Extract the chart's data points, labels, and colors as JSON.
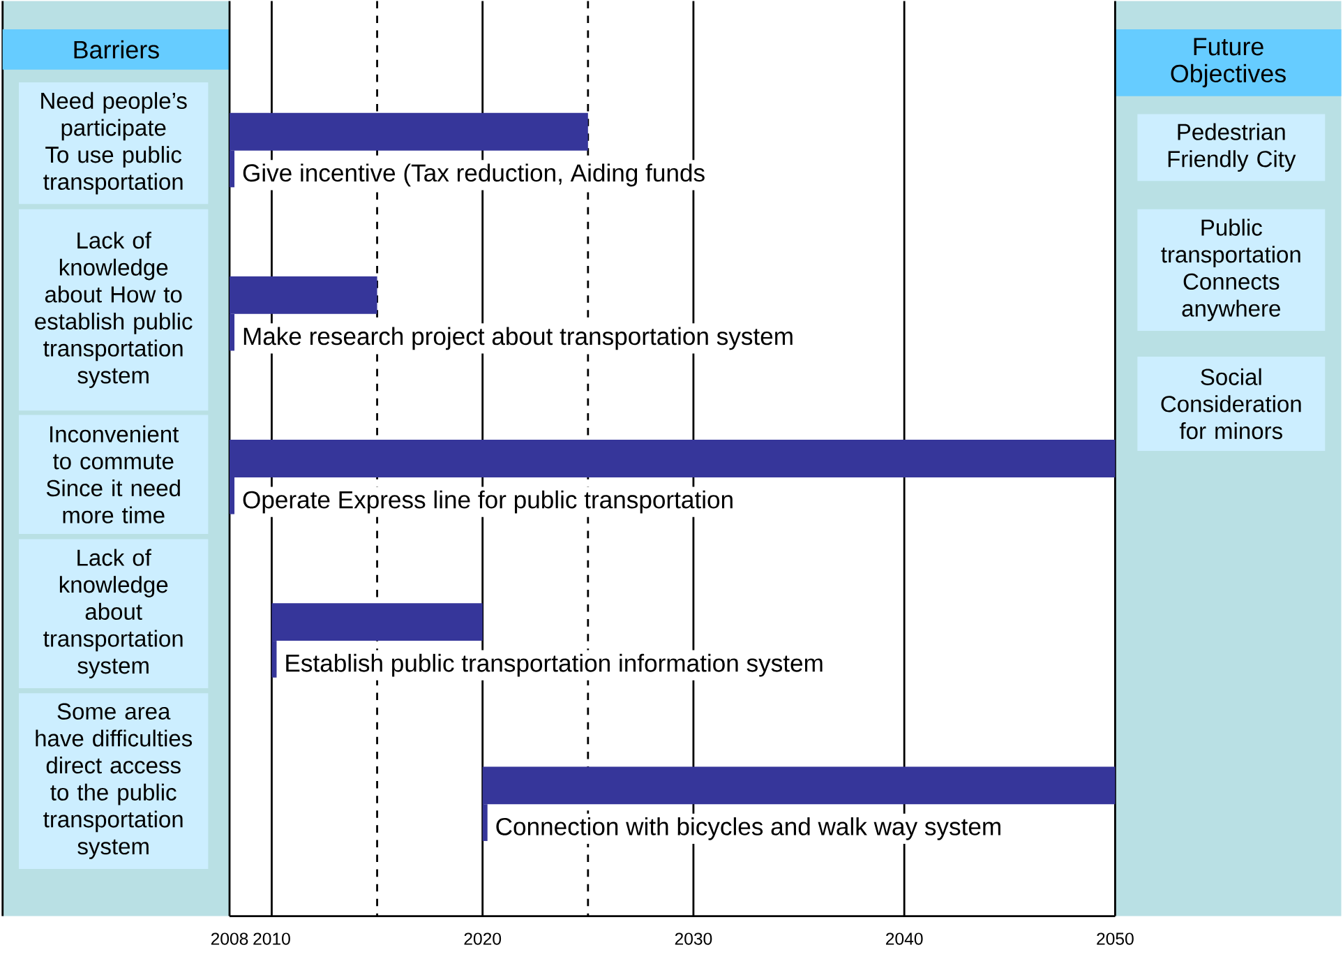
{
  "chart_data": {
    "type": "bar",
    "orientation": "horizontal",
    "categories": [
      "Give incentive (Tax reduction, Aiding funds",
      "Make research project about transportation system",
      "Operate Express line for public transportation",
      "Establish public transportation information system",
      "Connection with bicycles and walk way system"
    ],
    "base": [
      2008,
      2008,
      2008,
      2010,
      2020
    ],
    "values": [
      17,
      7,
      42,
      10,
      30
    ],
    "color": "#36369a",
    "xlim": [
      2008,
      2050
    ],
    "xticks": [
      2008,
      2010,
      2020,
      2030,
      2040,
      2050
    ],
    "grid": "x",
    "tick_labels": "x",
    "ref_lines": [
      {
        "axis": "x",
        "value": 2015,
        "line_style": "dashed"
      },
      {
        "axis": "x",
        "value": 2025,
        "line_style": "dashed"
      }
    ],
    "annotations": [
      "Barriers",
      "Need people’s participate To use public transportation",
      "Lack of knowledge about How to establish public transportation system",
      "Inconvenient to commute Since it need more time",
      "Lack of knowledge about transportation system",
      "Some area have difficulties direct access to the public transportation system",
      "Future Objectives",
      "Pedestrian Friendly City",
      "Public transportation Connects anywhere",
      "Social Consideration for minors"
    ]
  }
}
